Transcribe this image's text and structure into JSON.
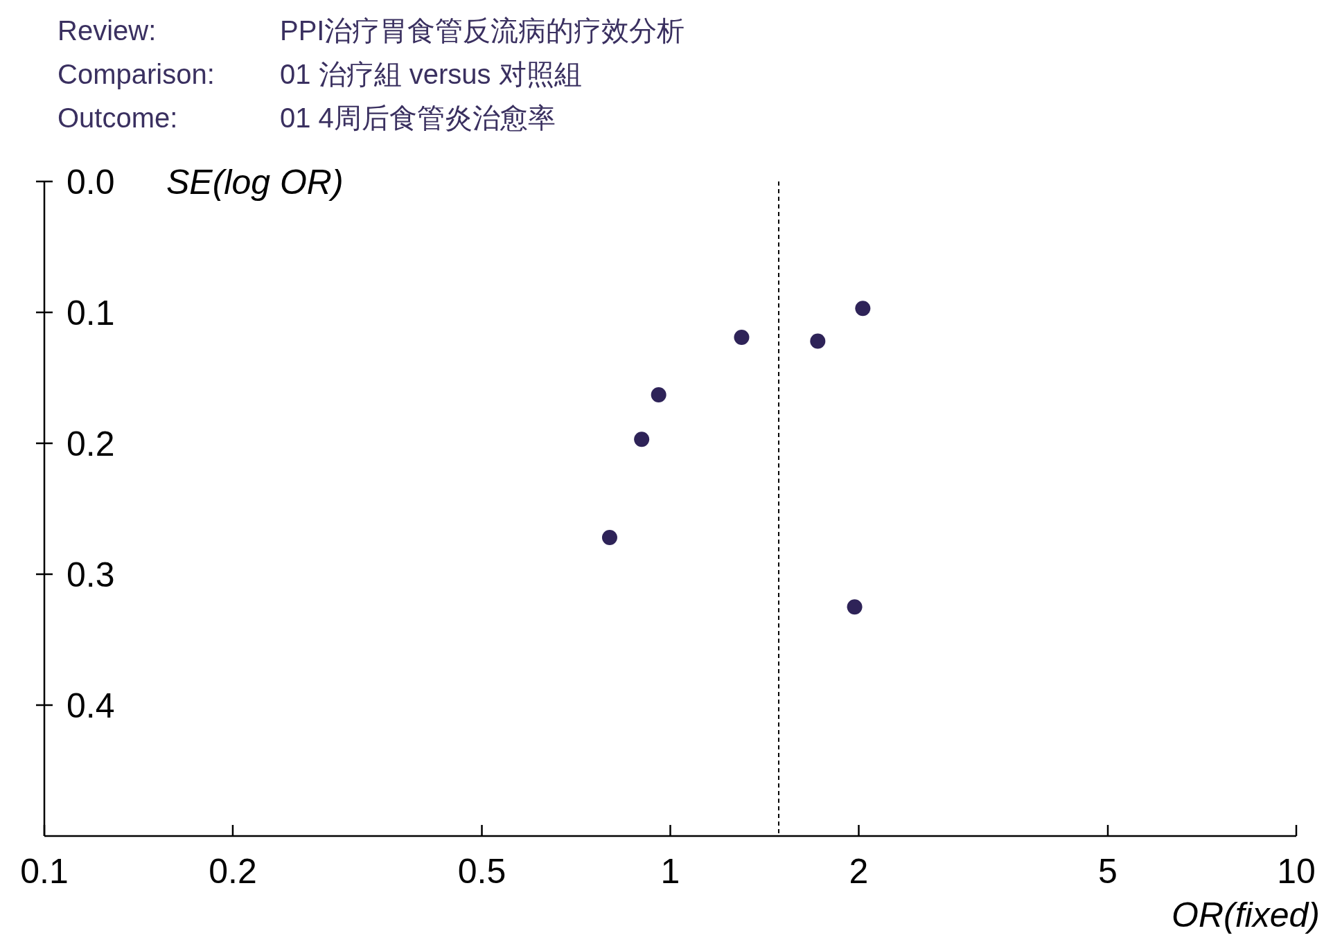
{
  "chart_data": {
    "type": "scatter",
    "annotations": [
      "Review:",
      "PPI治疗胃食管反流病的疗效分析",
      "Comparison:",
      "01 治疗組 versus 对照組",
      "Outcome:",
      "01 4周后食管炎治愈率"
    ],
    "xlabel": "OR(fixed)",
    "ylabel": "SE(log OR)",
    "log": "x",
    "xlim": [
      0.1,
      10
    ],
    "xticks": [
      0.1,
      0.2,
      0.5,
      1,
      2,
      5,
      10
    ],
    "ylim": [
      0.5,
      0
    ],
    "yticks": [
      {
        "value": 0,
        "label": "0.0"
      },
      0.1,
      0.2,
      0.3,
      0.4
    ],
    "series": [
      {
        "color": "#2e2358",
        "x": [
          2.03,
          1.3,
          1.72,
          0.958,
          0.9,
          0.8,
          1.97
        ],
        "values": [
          0.097,
          0.119,
          0.122,
          0.163,
          0.197,
          0.272,
          0.325
        ]
      }
    ],
    "ref_lines": [
      {
        "axis": "x",
        "value": 1.49,
        "line_style": "dashed",
        "color": "#000000"
      }
    ],
    "marker": "circle",
    "grid": false
  }
}
